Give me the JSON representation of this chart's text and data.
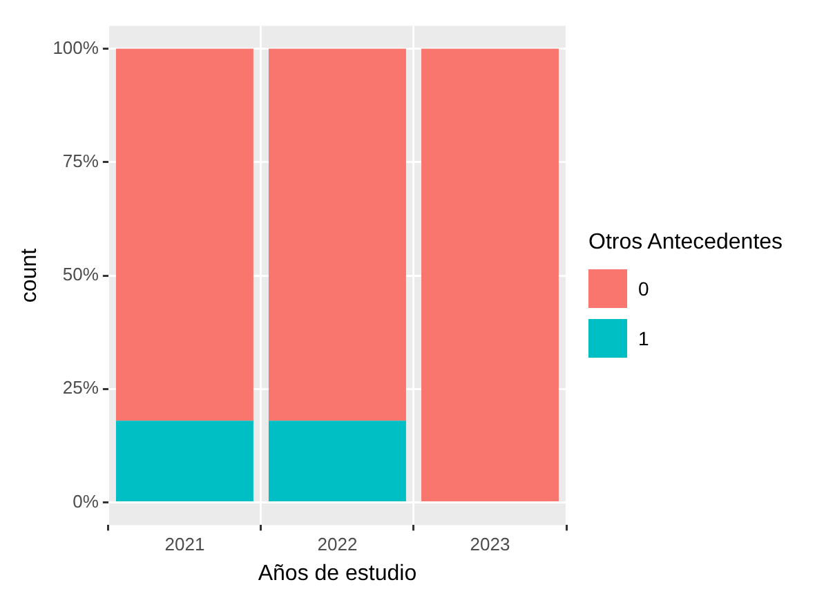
{
  "chart_data": {
    "type": "bar",
    "stacked": true,
    "xlabel": "Años de estudio",
    "ylabel": "count",
    "legend_title": "Otros Antecedentes",
    "legend": "right",
    "grid": true,
    "categories": [
      "2021",
      "2022",
      "2023"
    ],
    "series": [
      {
        "name": "1",
        "color": "#00bfc4",
        "values": [
          18,
          18,
          0
        ]
      },
      {
        "name": "0",
        "color": "#f8766d",
        "values": [
          82,
          82,
          100
        ]
      }
    ],
    "ylim": [
      -5,
      105
    ],
    "yticks": [
      {
        "value": 0,
        "label": "0%"
      },
      {
        "value": 25,
        "label": "25%"
      },
      {
        "value": 50,
        "label": "50%"
      },
      {
        "value": 75,
        "label": "75%"
      },
      {
        "value": 100,
        "label": "100%"
      }
    ]
  }
}
